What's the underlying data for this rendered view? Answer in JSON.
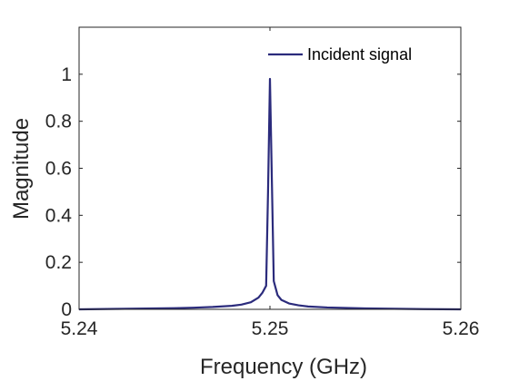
{
  "chart_data": {
    "type": "line",
    "title": "",
    "xlabel": "Frequency (GHz)",
    "ylabel": "Magnitude",
    "xlim": [
      5.24,
      5.26
    ],
    "ylim": [
      0,
      1.2
    ],
    "xticks": [
      "5.24",
      "5.25",
      "5.26"
    ],
    "xtick_values": [
      5.24,
      5.25,
      5.26
    ],
    "yticks": [
      "0",
      "0.2",
      "0.4",
      "0.6",
      "0.8",
      "1"
    ],
    "ytick_values": [
      0,
      0.2,
      0.4,
      0.6,
      0.8,
      1
    ],
    "grid": false,
    "legend_position": "top-right",
    "series": [
      {
        "name": "Incident signal",
        "color": "#2b2b7c",
        "x": [
          5.24,
          5.242,
          5.244,
          5.245,
          5.246,
          5.247,
          5.248,
          5.2485,
          5.249,
          5.2494,
          5.2496,
          5.2498,
          5.2499,
          5.25,
          5.2501,
          5.2502,
          5.2504,
          5.2506,
          5.251,
          5.2515,
          5.252,
          5.253,
          5.254,
          5.255,
          5.256,
          5.258,
          5.26
        ],
        "y": [
          0.0,
          0.002,
          0.004,
          0.005,
          0.007,
          0.01,
          0.015,
          0.02,
          0.03,
          0.05,
          0.07,
          0.1,
          0.5,
          0.98,
          0.55,
          0.12,
          0.06,
          0.04,
          0.025,
          0.017,
          0.012,
          0.008,
          0.006,
          0.004,
          0.003,
          0.001,
          0.0
        ]
      }
    ]
  }
}
